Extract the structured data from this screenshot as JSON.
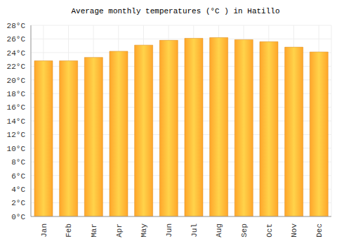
{
  "chart_data": {
    "type": "bar",
    "title": "Average monthly temperatures (°C ) in Hatillo",
    "categories": [
      "Jan",
      "Feb",
      "Mar",
      "Apr",
      "May",
      "Jun",
      "Jul",
      "Aug",
      "Sep",
      "Oct",
      "Nov",
      "Dec"
    ],
    "values": [
      22.8,
      22.8,
      23.3,
      24.2,
      25.1,
      25.8,
      26.1,
      26.2,
      25.9,
      25.6,
      24.8,
      24.1
    ],
    "color": "#ffa62b",
    "ylim": [
      0,
      28
    ],
    "yticks": [
      {
        "value": 0,
        "label": "0°C"
      },
      {
        "value": 2,
        "label": "2°C"
      },
      {
        "value": 4,
        "label": "4°C"
      },
      {
        "value": 6,
        "label": "6°C"
      },
      {
        "value": 8,
        "label": "8°C"
      },
      {
        "value": 10,
        "label": "10°C"
      },
      {
        "value": 12,
        "label": "12°C"
      },
      {
        "value": 14,
        "label": "14°C"
      },
      {
        "value": 16,
        "label": "16°C"
      },
      {
        "value": 18,
        "label": "18°C"
      },
      {
        "value": 20,
        "label": "20°C"
      },
      {
        "value": 22,
        "label": "22°C"
      },
      {
        "value": 24,
        "label": "24°C"
      },
      {
        "value": 26,
        "label": "26°C"
      },
      {
        "value": 28,
        "label": "28°C"
      }
    ],
    "grid": true
  }
}
